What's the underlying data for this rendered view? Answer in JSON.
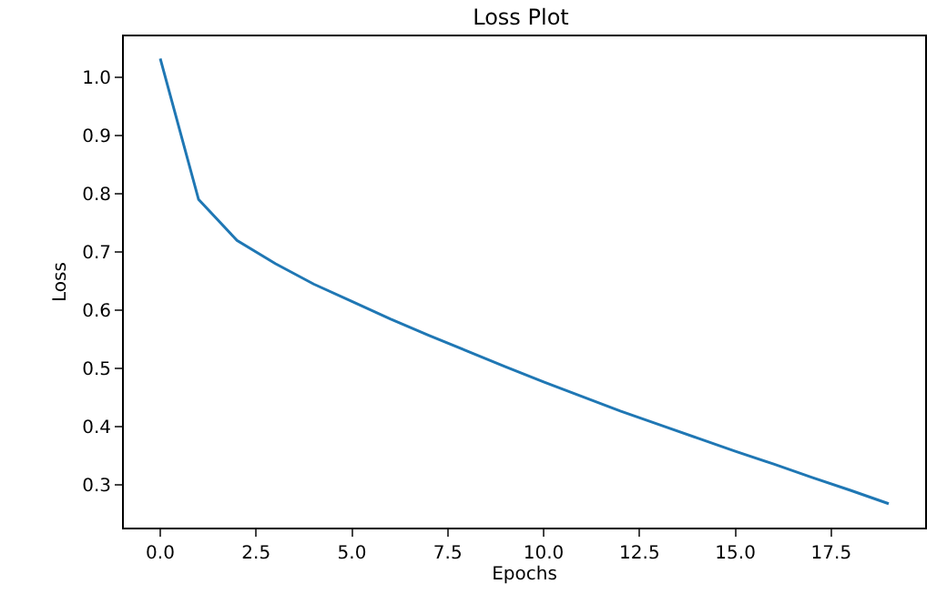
{
  "chart_data": {
    "type": "line",
    "title": "Loss Plot",
    "xlabel": "Epochs",
    "ylabel": "Loss",
    "x": [
      0,
      1,
      2,
      3,
      4,
      5,
      6,
      7,
      8,
      9,
      10,
      11,
      12,
      13,
      14,
      15,
      16,
      17,
      18,
      19
    ],
    "series": [
      {
        "color": "#1f77b4",
        "values": [
          1.032,
          0.79,
          0.72,
          0.68,
          0.645,
          0.615,
          0.585,
          0.557,
          0.53,
          0.503,
          0.477,
          0.452,
          0.427,
          0.404,
          0.381,
          0.358,
          0.336,
          0.313,
          0.291,
          0.268
        ]
      }
    ],
    "xlim": [
      -0.95,
      19.95
    ],
    "xticks": [
      {
        "value": 0,
        "label": "0.0"
      },
      2.5,
      {
        "value": 5,
        "label": "5.0"
      },
      7.5,
      {
        "value": 10,
        "label": "10.0"
      },
      12.5,
      {
        "value": 15,
        "label": "15.0"
      },
      17.5
    ],
    "ylim": [
      0.227,
      1.07
    ],
    "yticks": [
      0.3,
      0.4,
      0.5,
      0.6,
      0.7,
      0.8,
      0.9,
      {
        "value": 1,
        "label": "1.0"
      }
    ],
    "grid": false
  }
}
